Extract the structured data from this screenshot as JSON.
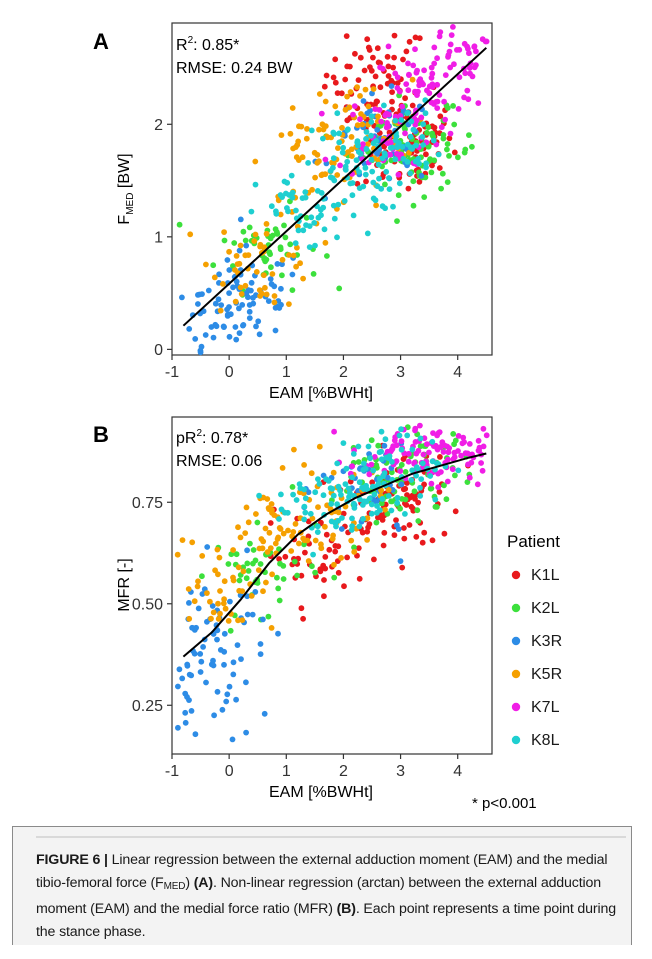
{
  "colors": {
    "K1L": "#e8191c",
    "K2L": "#3ce03c",
    "K3R": "#2d8ce6",
    "K5R": "#f5a000",
    "K7L": "#f01ee6",
    "K8L": "#1ecfd0",
    "fit_line": "#000000",
    "caption_bg": "#f3f3f3"
  },
  "legend": {
    "title": "Patient",
    "items": [
      "K1L",
      "K2L",
      "K3R",
      "K5R",
      "K7L",
      "K8L"
    ]
  },
  "footnote": "* p<0.001",
  "caption": {
    "figure_label": "FIGURE 6 |",
    "text_1": " Linear regression between the external adduction moment (EAM) and the medial tibio-femoral force (F",
    "sub_1": "MED",
    "text_2": ") ",
    "ref_a": "(A)",
    "text_3": ". Non-linear regression (arctan) between the external adduction moment (EAM) and the medial force ratio (MFR) ",
    "ref_b": "(B)",
    "text_4": ". Each point represents a time point during the stance phase."
  },
  "chart_data": [
    {
      "type": "scatter",
      "panel_label": "A",
      "annotations": [
        {
          "base": "R",
          "sup": "2",
          "rest": ": 0.85*"
        },
        {
          "text": "RMSE: 0.24 BW"
        }
      ],
      "xlabel": "EAM [%BWHt]",
      "ylabel": {
        "base": "F",
        "sub": "MED",
        "rest": " [BW]"
      },
      "xlim": [
        -1.0,
        4.6
      ],
      "ylim": [
        -0.05,
        2.9
      ],
      "xticks": [
        -1,
        0,
        1,
        2,
        3,
        4
      ],
      "yticks": [
        0,
        1,
        2
      ],
      "tick_labels_x": [
        "-1",
        "0",
        "1",
        "2",
        "3",
        "4"
      ],
      "tick_labels_y": [
        "0",
        "1",
        "2"
      ],
      "grid": false,
      "fit": {
        "model": "linear",
        "x": [
          -0.8,
          4.5
        ],
        "y": [
          0.21,
          2.68
        ]
      },
      "series": [
        {
          "name": "K1L",
          "x_range": [
            1.3,
            3.5
          ],
          "center_x": [
            2.9,
            3.0
          ],
          "cluster": [
            [
              2.6,
              2.45
            ],
            [
              2.9,
              2.0
            ],
            [
              3.1,
              1.8
            ]
          ],
          "spread": 0.22
        },
        {
          "name": "K2L",
          "x_range": [
            -0.2,
            3.8
          ],
          "cluster": [
            [
              0.7,
              0.9
            ],
            [
              3.0,
              1.85
            ],
            [
              3.4,
              1.75
            ]
          ],
          "spread": 0.18
        },
        {
          "name": "K3R",
          "x_range": [
            -0.9,
            3.3
          ],
          "cluster": [
            [
              -0.3,
              0.2
            ],
            [
              0.4,
              0.5
            ],
            [
              2.7,
              1.85
            ]
          ],
          "spread": 0.2
        },
        {
          "name": "K5R",
          "x_range": [
            -0.4,
            3.2
          ],
          "cluster": [
            [
              0.6,
              0.8
            ],
            [
              1.5,
              1.65
            ],
            [
              2.3,
              1.95
            ]
          ],
          "spread": 0.22
        },
        {
          "name": "K7L",
          "x_range": [
            1.5,
            4.5
          ],
          "cluster": [
            [
              3.4,
              2.3
            ],
            [
              4.1,
              2.65
            ],
            [
              2.8,
              1.9
            ]
          ],
          "spread": 0.18
        },
        {
          "name": "K8L",
          "x_range": [
            1.0,
            3.5
          ],
          "cluster": [
            [
              2.2,
              1.6
            ],
            [
              2.8,
              1.85
            ],
            [
              1.4,
              1.2
            ]
          ],
          "spread": 0.18
        }
      ]
    },
    {
      "type": "scatter",
      "panel_label": "B",
      "annotations": [
        {
          "base": "pR",
          "sup": "2",
          "rest": ": 0.78*"
        },
        {
          "text": "RMSE: 0.06"
        }
      ],
      "xlabel": "EAM [%BWHt]",
      "ylabel": {
        "base": "MFR [-]",
        "sub": "",
        "rest": ""
      },
      "xlim": [
        -1.0,
        4.6
      ],
      "ylim": [
        0.13,
        0.96
      ],
      "xticks": [
        -1,
        0,
        1,
        2,
        3,
        4
      ],
      "yticks": [
        0.25,
        0.5,
        0.75
      ],
      "tick_labels_x": [
        "-1",
        "0",
        "1",
        "2",
        "3",
        "4"
      ],
      "tick_labels_y": [
        "0.25",
        "0.50",
        "0.75"
      ],
      "grid": false,
      "fit": {
        "model": "arctan",
        "x": [
          -0.8,
          -0.3,
          0.2,
          0.7,
          1.2,
          1.7,
          2.2,
          2.7,
          3.2,
          3.7,
          4.2,
          4.5
        ],
        "y": [
          0.37,
          0.43,
          0.51,
          0.6,
          0.67,
          0.72,
          0.76,
          0.79,
          0.82,
          0.84,
          0.86,
          0.87
        ]
      },
      "series": [
        {
          "name": "K1L",
          "cluster": [
            [
              2.8,
              0.72
            ],
            [
              3.0,
              0.78
            ],
            [
              1.5,
              0.62
            ]
          ],
          "spread": 0.05
        },
        {
          "name": "K2L",
          "cluster": [
            [
              2.8,
              0.78
            ],
            [
              3.4,
              0.84
            ],
            [
              0.6,
              0.58
            ]
          ],
          "spread": 0.05
        },
        {
          "name": "K3R",
          "cluster": [
            [
              -0.6,
              0.28
            ],
            [
              -0.2,
              0.45
            ],
            [
              2.5,
              0.78
            ]
          ],
          "spread": 0.07
        },
        {
          "name": "K5R",
          "cluster": [
            [
              0.8,
              0.68
            ],
            [
              1.8,
              0.73
            ],
            [
              -0.1,
              0.55
            ]
          ],
          "spread": 0.06
        },
        {
          "name": "K7L",
          "cluster": [
            [
              3.6,
              0.88
            ],
            [
              4.2,
              0.87
            ],
            [
              3.0,
              0.86
            ]
          ],
          "spread": 0.04
        },
        {
          "name": "K8L",
          "cluster": [
            [
              2.4,
              0.79
            ],
            [
              3.0,
              0.85
            ],
            [
              1.7,
              0.74
            ]
          ],
          "spread": 0.05
        }
      ]
    }
  ]
}
